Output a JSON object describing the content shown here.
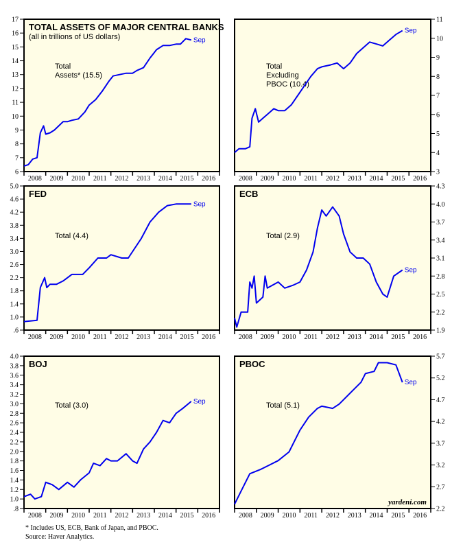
{
  "colors": {
    "line": "#0000ee",
    "panel": "#fffde6"
  },
  "footnotes": {
    "note": "* Includes US, ECB, Bank of Japan, and PBOC.",
    "source": "Source: Haver Analytics.",
    "watermark": "yardeni.com"
  },
  "chart_data": [
    {
      "type": "line",
      "title": "TOTAL ASSETS OF MAJOR CENTRAL BANKS",
      "subtitle": "(all in trillions of US dollars)",
      "annotation": "Total|Assets* (15.5)",
      "end_label": "Sep",
      "axis_side": "left",
      "ylim": [
        6,
        17
      ],
      "ystep": 1,
      "yticks": [
        "6",
        "7",
        "8",
        "9",
        "10",
        "11",
        "12",
        "13",
        "14",
        "15",
        "16",
        "17"
      ],
      "xticks": [
        "2008",
        "2009",
        "2010",
        "2011",
        "2012",
        "2013",
        "2014",
        "2015",
        "2016"
      ],
      "xlim": [
        2008,
        2017
      ],
      "x": [
        2008.0,
        2008.2,
        2008.4,
        2008.6,
        2008.75,
        2008.9,
        2009.0,
        2009.2,
        2009.4,
        2009.6,
        2009.8,
        2010.0,
        2010.2,
        2010.5,
        2010.8,
        2011.0,
        2011.3,
        2011.6,
        2011.9,
        2012.1,
        2012.4,
        2012.7,
        2013.0,
        2013.2,
        2013.5,
        2013.8,
        2014.1,
        2014.4,
        2014.7,
        2015.0,
        2015.2,
        2015.45,
        2015.7
      ],
      "y": [
        6.4,
        6.5,
        6.9,
        7.0,
        8.8,
        9.3,
        8.7,
        8.8,
        9.0,
        9.3,
        9.6,
        9.6,
        9.7,
        9.8,
        10.3,
        10.8,
        11.2,
        11.8,
        12.5,
        12.9,
        13.0,
        13.1,
        13.1,
        13.3,
        13.5,
        14.2,
        14.8,
        15.1,
        15.1,
        15.2,
        15.2,
        15.6,
        15.5
      ]
    },
    {
      "type": "line",
      "title": "",
      "annotation": "Total|Excluding|PBOC (10.4)",
      "end_label": "Sep",
      "axis_side": "right",
      "ylim": [
        3,
        11
      ],
      "ystep": 1,
      "yticks": [
        "3",
        "4",
        "5",
        "6",
        "7",
        "8",
        "9",
        "10",
        "11"
      ],
      "xticks": [
        "2008",
        "2009",
        "2010",
        "2011",
        "2012",
        "2013",
        "2014",
        "2015",
        "2016"
      ],
      "xlim": [
        2008,
        2017
      ],
      "x": [
        2008.0,
        2008.2,
        2008.5,
        2008.7,
        2008.8,
        2008.95,
        2009.1,
        2009.3,
        2009.5,
        2009.8,
        2010.0,
        2010.3,
        2010.6,
        2010.9,
        2011.2,
        2011.5,
        2011.8,
        2012.0,
        2012.4,
        2012.7,
        2013.0,
        2013.3,
        2013.6,
        2013.9,
        2014.2,
        2014.5,
        2014.8,
        2015.1,
        2015.4,
        2015.7
      ],
      "y": [
        4.0,
        4.2,
        4.2,
        4.3,
        5.8,
        6.3,
        5.6,
        5.8,
        6.0,
        6.3,
        6.2,
        6.2,
        6.5,
        7.0,
        7.5,
        8.0,
        8.4,
        8.5,
        8.6,
        8.7,
        8.4,
        8.7,
        9.2,
        9.5,
        9.8,
        9.7,
        9.6,
        9.9,
        10.2,
        10.4
      ]
    },
    {
      "type": "line",
      "title": "FED",
      "annotation": "Total (4.4)",
      "end_label": "Sep",
      "axis_side": "left",
      "ylim": [
        0.6,
        5.0
      ],
      "ystep": 0.4,
      "yticks": [
        ".6",
        "1.0",
        "1.4",
        "1.8",
        "2.2",
        "2.6",
        "3.0",
        "3.4",
        "3.8",
        "4.2",
        "4.6",
        "5.0"
      ],
      "xticks": [
        "2008",
        "2009",
        "2010",
        "2011",
        "2012",
        "2013",
        "2014",
        "2015",
        "2016"
      ],
      "xlim": [
        2008,
        2017
      ],
      "x": [
        2008.0,
        2008.6,
        2008.75,
        2008.95,
        2009.05,
        2009.2,
        2009.5,
        2009.8,
        2010.2,
        2010.7,
        2011.0,
        2011.4,
        2011.8,
        2012.0,
        2012.5,
        2012.8,
        2013.0,
        2013.4,
        2013.8,
        2014.2,
        2014.6,
        2015.0,
        2015.7
      ],
      "y": [
        0.86,
        0.9,
        1.9,
        2.2,
        1.9,
        2.0,
        2.0,
        2.1,
        2.3,
        2.3,
        2.5,
        2.8,
        2.8,
        2.9,
        2.8,
        2.8,
        3.0,
        3.4,
        3.9,
        4.2,
        4.4,
        4.45,
        4.45
      ]
    },
    {
      "type": "line",
      "title": "ECB",
      "annotation": "Total (2.9)",
      "end_label": "Sep",
      "axis_side": "right",
      "ylim": [
        1.9,
        4.3
      ],
      "ystep": 0.3,
      "yticks": [
        "1.9",
        "2.2",
        "2.5",
        "2.8",
        "3.1",
        "3.4",
        "3.7",
        "4.0",
        "4.3"
      ],
      "xticks": [
        "2008",
        "2009",
        "2010",
        "2011",
        "2012",
        "2013",
        "2014",
        "2015",
        "2016"
      ],
      "xlim": [
        2008,
        2017
      ],
      "x": [
        2008.0,
        2008.1,
        2008.3,
        2008.6,
        2008.7,
        2008.8,
        2008.9,
        2009.0,
        2009.3,
        2009.4,
        2009.5,
        2010.0,
        2010.3,
        2010.7,
        2011.0,
        2011.3,
        2011.6,
        2011.8,
        2012.0,
        2012.2,
        2012.5,
        2012.8,
        2013.0,
        2013.3,
        2013.6,
        2013.9,
        2014.2,
        2014.5,
        2014.8,
        2015.0,
        2015.3,
        2015.7
      ],
      "y": [
        2.1,
        1.95,
        2.2,
        2.2,
        2.7,
        2.6,
        2.8,
        2.35,
        2.45,
        2.8,
        2.6,
        2.7,
        2.6,
        2.65,
        2.7,
        2.9,
        3.2,
        3.6,
        3.9,
        3.8,
        3.95,
        3.8,
        3.5,
        3.2,
        3.1,
        3.1,
        3.0,
        2.7,
        2.5,
        2.45,
        2.8,
        2.9
      ]
    },
    {
      "type": "line",
      "title": "BOJ",
      "annotation": "Total (3.0)",
      "end_label": "Sep",
      "axis_side": "left",
      "ylim": [
        0.8,
        4.0
      ],
      "ystep": 0.2,
      "yticks": [
        ".8",
        "1.0",
        "1.2",
        "1.4",
        "1.6",
        "1.8",
        "2.0",
        "2.2",
        "2.4",
        "2.6",
        "2.8",
        "3.0",
        "3.2",
        "3.4",
        "3.6",
        "3.8",
        "4.0"
      ],
      "xticks": [
        "2008",
        "2009",
        "2010",
        "2011",
        "2012",
        "2013",
        "2014",
        "2015",
        "2016"
      ],
      "xlim": [
        2008,
        2017
      ],
      "x": [
        2008.0,
        2008.3,
        2008.5,
        2008.8,
        2009.0,
        2009.3,
        2009.6,
        2010.0,
        2010.3,
        2010.6,
        2011.0,
        2011.2,
        2011.5,
        2011.8,
        2012.0,
        2012.3,
        2012.7,
        2013.0,
        2013.2,
        2013.5,
        2013.8,
        2014.1,
        2014.4,
        2014.7,
        2015.0,
        2015.3,
        2015.7
      ],
      "y": [
        1.05,
        1.1,
        1.0,
        1.05,
        1.35,
        1.3,
        1.2,
        1.35,
        1.25,
        1.4,
        1.55,
        1.75,
        1.7,
        1.85,
        1.8,
        1.8,
        1.95,
        1.8,
        1.75,
        2.05,
        2.2,
        2.4,
        2.65,
        2.6,
        2.8,
        2.9,
        3.05
      ]
    },
    {
      "type": "line",
      "title": "PBOC",
      "annotation": "Total (5.1)",
      "end_label": "Sep",
      "axis_side": "right",
      "ylim": [
        2.2,
        5.7
      ],
      "ystep": 0.5,
      "yticks": [
        "2.2",
        "2.7",
        "3.2",
        "3.7",
        "4.2",
        "4.7",
        "5.2",
        "5.7"
      ],
      "xticks": [
        "2008",
        "2009",
        "2010",
        "2011",
        "2012",
        "2013",
        "2014",
        "2015",
        "2016"
      ],
      "xlim": [
        2008,
        2017
      ],
      "x": [
        2008.0,
        2008.3,
        2008.7,
        2009.2,
        2009.6,
        2010.0,
        2010.5,
        2011.0,
        2011.4,
        2011.8,
        2012.0,
        2012.5,
        2012.8,
        2013.0,
        2013.4,
        2013.8,
        2014.0,
        2014.4,
        2014.6,
        2015.0,
        2015.4,
        2015.7
      ],
      "y": [
        2.3,
        2.6,
        3.0,
        3.1,
        3.2,
        3.3,
        3.5,
        4.0,
        4.3,
        4.5,
        4.55,
        4.5,
        4.6,
        4.7,
        4.9,
        5.1,
        5.3,
        5.35,
        5.55,
        5.55,
        5.5,
        5.1
      ]
    }
  ]
}
